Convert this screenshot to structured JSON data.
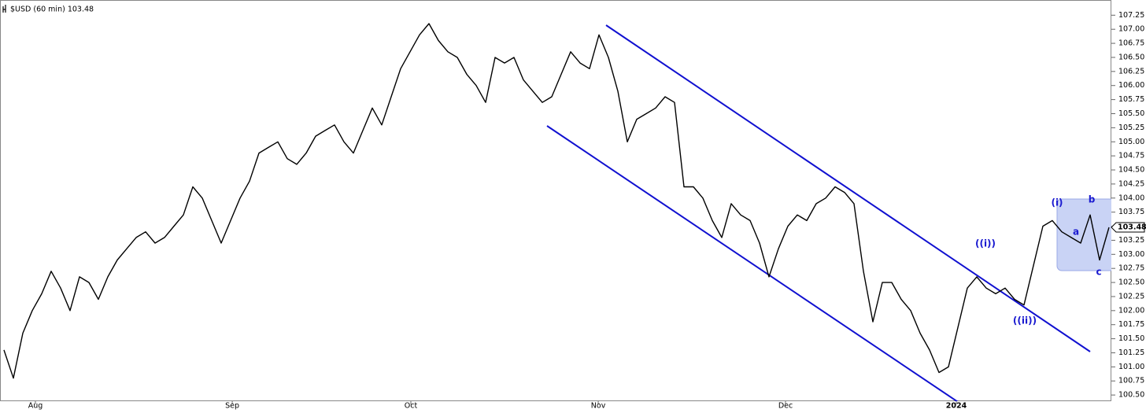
{
  "chart_data": {
    "type": "line",
    "title": "$USD (60 min) 103.48",
    "current_price_label": "103.48",
    "color": "#000000",
    "values": [
      101.3,
      100.8,
      101.6,
      102.0,
      102.3,
      102.7,
      102.4,
      102.0,
      102.6,
      102.5,
      102.2,
      102.6,
      102.9,
      103.1,
      103.3,
      103.4,
      103.2,
      103.3,
      103.5,
      103.7,
      104.2,
      104.0,
      103.6,
      103.2,
      103.6,
      104.0,
      104.3,
      104.8,
      104.9,
      105.0,
      104.7,
      104.6,
      104.8,
      105.1,
      105.2,
      105.3,
      105.0,
      104.8,
      105.2,
      105.6,
      105.3,
      105.8,
      106.3,
      106.6,
      106.9,
      107.1,
      106.8,
      106.6,
      106.5,
      106.2,
      106.0,
      105.7,
      106.5,
      106.4,
      106.5,
      106.1,
      105.9,
      105.7,
      105.8,
      106.2,
      106.6,
      106.4,
      106.3,
      106.9,
      106.5,
      105.9,
      105.0,
      105.4,
      105.5,
      105.6,
      105.8,
      105.7,
      104.2,
      104.2,
      104.0,
      103.6,
      103.3,
      103.9,
      103.7,
      103.6,
      103.2,
      102.6,
      103.1,
      103.5,
      103.7,
      103.6,
      103.9,
      104.0,
      104.2,
      104.1,
      103.9,
      102.7,
      101.8,
      102.5,
      102.5,
      102.2,
      102.0,
      101.6,
      101.3,
      100.9,
      101.0,
      101.7,
      102.4,
      102.6,
      102.4,
      102.3,
      102.4,
      102.2,
      102.1,
      102.8,
      103.5,
      103.6,
      103.4,
      103.3,
      103.2,
      103.7,
      102.9,
      103.48
    ],
    "xlim": [
      -0.42,
      117.25
    ],
    "xticks": [
      {
        "value": 3.33,
        "label": "Aug"
      },
      {
        "value": 24.17,
        "label": "Sep"
      },
      {
        "value": 43.08,
        "label": "Oct"
      },
      {
        "value": 62.92,
        "label": "Nov"
      },
      {
        "value": 82.75,
        "label": "Dec"
      },
      {
        "value": 100.83,
        "label": "2024"
      }
    ],
    "ylim": [
      100.39,
      107.52
    ],
    "yticks": [
      {
        "value": 100.5,
        "label": "100.50"
      },
      100.75,
      {
        "value": 101,
        "label": "101.00"
      },
      101.25,
      {
        "value": 101.5,
        "label": "101.50"
      },
      101.75,
      {
        "value": 102,
        "label": "102.00"
      },
      102.25,
      {
        "value": 102.5,
        "label": "102.50"
      },
      102.75,
      {
        "value": 103,
        "label": "103.00"
      },
      103.25,
      {
        "value": 103.5,
        "label": "103.50"
      },
      103.75,
      {
        "value": 104,
        "label": "104.00"
      },
      104.25,
      {
        "value": 104.5,
        "label": "104.50"
      },
      104.75,
      {
        "value": 105,
        "label": "105.00"
      },
      105.25,
      {
        "value": 105.5,
        "label": "105.50"
      },
      105.75,
      {
        "value": 106,
        "label": "106.00"
      },
      106.25,
      {
        "value": 106.5,
        "label": "106.50"
      },
      106.75,
      {
        "value": 107,
        "label": "107.00"
      },
      107.25
    ],
    "annotations": [
      "(i)",
      "a",
      "b",
      "c",
      "((i))",
      "((ii))"
    ],
    "grid": false
  }
}
